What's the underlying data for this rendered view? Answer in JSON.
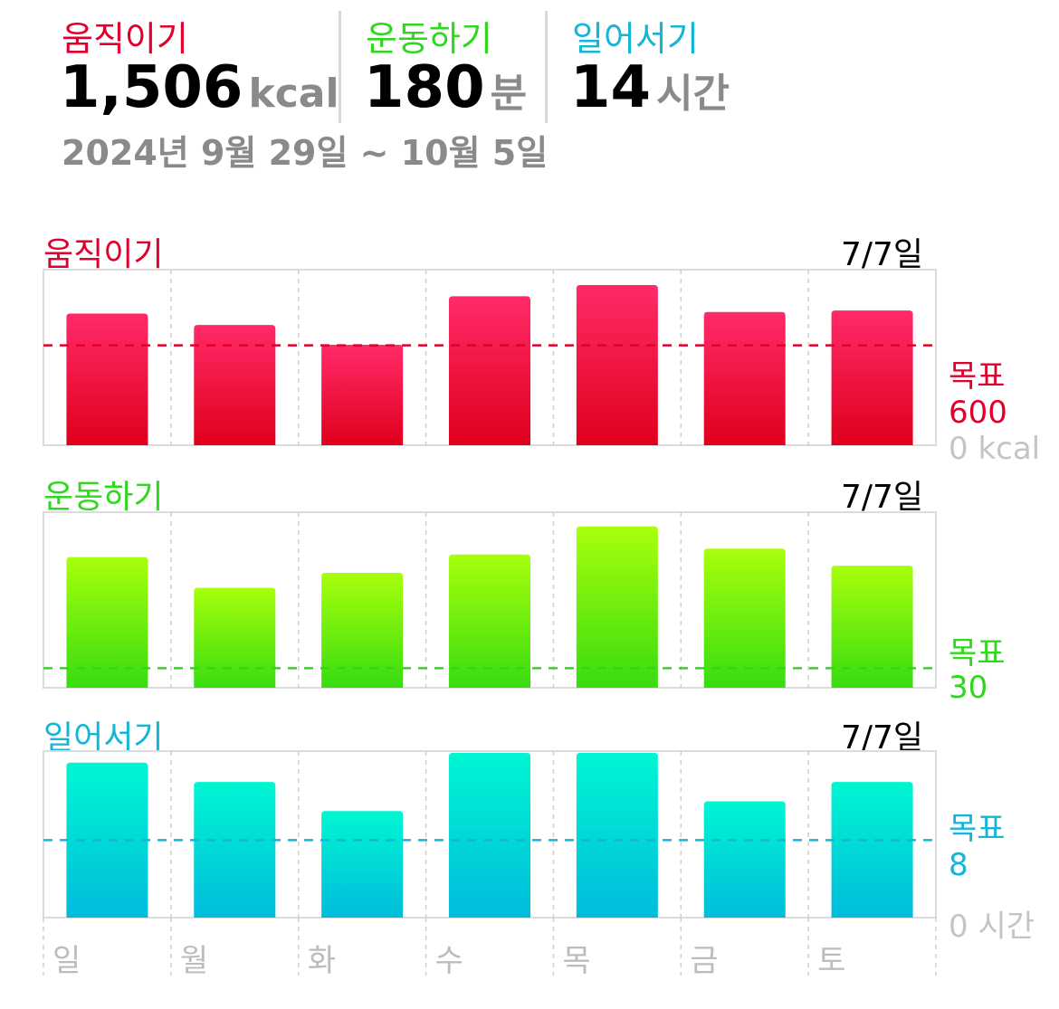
{
  "summary": {
    "move": {
      "label": "움직이기",
      "value": "1,506",
      "unit": "kcal",
      "color": "#e0002d"
    },
    "exercise": {
      "label": "운동하기",
      "value": "180",
      "unit": "분",
      "color": "#2ed81d"
    },
    "stand": {
      "label": "일어서기",
      "value": "14",
      "unit": "시간",
      "color": "#14b6d6"
    },
    "date_range": "2024년 9월 29일 ~ 10월 5일"
  },
  "days": [
    "일",
    "월",
    "화",
    "수",
    "목",
    "금",
    "토"
  ],
  "chart_data": [
    {
      "type": "bar",
      "title": "움직이기",
      "count_label": "7/7일",
      "categories": [
        "일",
        "월",
        "화",
        "수",
        "목",
        "금",
        "토"
      ],
      "values": [
        791,
        722,
        603,
        895,
        962,
        800,
        809
      ],
      "goal": 600,
      "goal_label": "목표",
      "goal_value_label": "600",
      "ylim": [
        0,
        1000
      ],
      "axis_unit_label": "0 kcal",
      "color_top": "#ff2a68",
      "color_bottom": "#e0001c",
      "accent": "#e0002d"
    },
    {
      "type": "bar",
      "title": "운동하기",
      "count_label": "7/7일",
      "categories": [
        "일",
        "월",
        "화",
        "수",
        "목",
        "금",
        "토"
      ],
      "values": [
        200,
        153,
        176,
        204,
        247,
        213,
        187
      ],
      "goal": 30,
      "goal_label": "목표",
      "goal_value_label": "30",
      "ylim": [
        0,
        255
      ],
      "axis_unit_label": "",
      "color_top": "#a8ff0c",
      "color_bottom": "#38dc10",
      "accent": "#2ed81d"
    },
    {
      "type": "bar",
      "title": "일어서기",
      "count_label": "7/7일",
      "categories": [
        "일",
        "월",
        "화",
        "수",
        "목",
        "금",
        "토"
      ],
      "values": [
        16,
        14,
        11,
        17,
        17,
        12,
        14
      ],
      "goal": 8,
      "goal_label": "목표",
      "goal_value_label": "8",
      "ylim": [
        0,
        17
      ],
      "axis_unit_label": "0 시간",
      "color_top": "#00f6d2",
      "color_bottom": "#00bcdc",
      "accent": "#14b6d6"
    }
  ]
}
